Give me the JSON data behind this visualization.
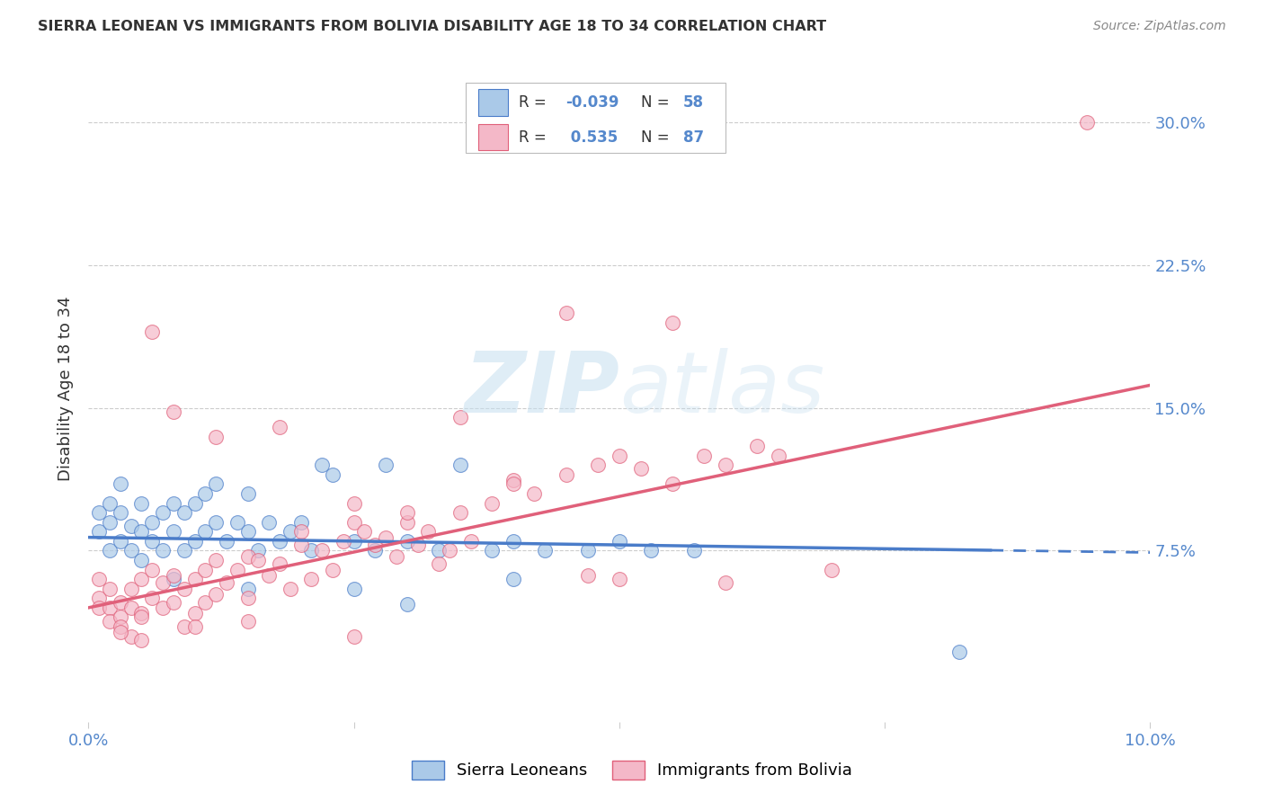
{
  "title": "SIERRA LEONEAN VS IMMIGRANTS FROM BOLIVIA DISABILITY AGE 18 TO 34 CORRELATION CHART",
  "source": "Source: ZipAtlas.com",
  "ylabel": "Disability Age 18 to 34",
  "xlim": [
    0.0,
    0.1
  ],
  "ylim": [
    -0.015,
    0.335
  ],
  "yticks": [
    0.075,
    0.15,
    0.225,
    0.3
  ],
  "ytick_labels": [
    "7.5%",
    "15.0%",
    "22.5%",
    "30.0%"
  ],
  "xticks": [
    0.0,
    0.025,
    0.05,
    0.075,
    0.1
  ],
  "xtick_labels": [
    "0.0%",
    "",
    "",
    "",
    "10.0%"
  ],
  "gridline_color": "#cccccc",
  "background_color": "#ffffff",
  "color_blue": "#aac9e8",
  "color_pink": "#f4b8c8",
  "color_blue_line": "#4a7cc9",
  "color_pink_line": "#e0607a",
  "color_axis_label": "#5588cc",
  "color_text": "#333333",
  "legend_labels": [
    "Sierra Leoneans",
    "Immigrants from Bolivia"
  ],
  "blue_R": "-0.039",
  "blue_N": "58",
  "pink_R": "0.535",
  "pink_N": "87",
  "blue_line_x": [
    0.0,
    0.1
  ],
  "blue_line_y": [
    0.082,
    0.074
  ],
  "pink_line_x": [
    0.0,
    0.1
  ],
  "pink_line_y": [
    0.045,
    0.162
  ],
  "blue_dots_x": [
    0.001,
    0.001,
    0.002,
    0.002,
    0.002,
    0.003,
    0.003,
    0.003,
    0.004,
    0.004,
    0.005,
    0.005,
    0.005,
    0.006,
    0.006,
    0.007,
    0.007,
    0.008,
    0.008,
    0.009,
    0.009,
    0.01,
    0.01,
    0.011,
    0.011,
    0.012,
    0.012,
    0.013,
    0.014,
    0.015,
    0.015,
    0.016,
    0.017,
    0.018,
    0.019,
    0.02,
    0.021,
    0.022,
    0.023,
    0.025,
    0.027,
    0.028,
    0.03,
    0.033,
    0.035,
    0.038,
    0.04,
    0.043,
    0.047,
    0.05,
    0.053,
    0.057,
    0.04,
    0.025,
    0.015,
    0.008,
    0.082,
    0.03
  ],
  "blue_dots_y": [
    0.085,
    0.095,
    0.075,
    0.09,
    0.1,
    0.08,
    0.095,
    0.11,
    0.075,
    0.088,
    0.07,
    0.085,
    0.1,
    0.08,
    0.09,
    0.075,
    0.095,
    0.085,
    0.1,
    0.075,
    0.095,
    0.08,
    0.1,
    0.085,
    0.105,
    0.09,
    0.11,
    0.08,
    0.09,
    0.085,
    0.105,
    0.075,
    0.09,
    0.08,
    0.085,
    0.09,
    0.075,
    0.12,
    0.115,
    0.08,
    0.075,
    0.12,
    0.08,
    0.075,
    0.12,
    0.075,
    0.08,
    0.075,
    0.075,
    0.08,
    0.075,
    0.075,
    0.06,
    0.055,
    0.055,
    0.06,
    0.022,
    0.047
  ],
  "pink_dots_x": [
    0.001,
    0.001,
    0.001,
    0.002,
    0.002,
    0.002,
    0.003,
    0.003,
    0.003,
    0.004,
    0.004,
    0.004,
    0.005,
    0.005,
    0.005,
    0.006,
    0.006,
    0.007,
    0.007,
    0.008,
    0.008,
    0.009,
    0.009,
    0.01,
    0.01,
    0.011,
    0.011,
    0.012,
    0.012,
    0.013,
    0.014,
    0.015,
    0.015,
    0.016,
    0.017,
    0.018,
    0.019,
    0.02,
    0.021,
    0.022,
    0.023,
    0.024,
    0.025,
    0.026,
    0.027,
    0.028,
    0.029,
    0.03,
    0.031,
    0.032,
    0.033,
    0.034,
    0.035,
    0.036,
    0.038,
    0.04,
    0.042,
    0.045,
    0.048,
    0.05,
    0.052,
    0.055,
    0.058,
    0.06,
    0.063,
    0.065,
    0.035,
    0.025,
    0.018,
    0.012,
    0.008,
    0.02,
    0.03,
    0.04,
    0.05,
    0.06,
    0.07,
    0.025,
    0.015,
    0.01,
    0.005,
    0.003,
    0.006,
    0.045,
    0.055,
    0.094,
    0.047
  ],
  "pink_dots_y": [
    0.06,
    0.05,
    0.045,
    0.055,
    0.045,
    0.038,
    0.048,
    0.04,
    0.035,
    0.055,
    0.045,
    0.03,
    0.06,
    0.042,
    0.028,
    0.065,
    0.05,
    0.058,
    0.045,
    0.062,
    0.048,
    0.055,
    0.035,
    0.06,
    0.042,
    0.065,
    0.048,
    0.07,
    0.052,
    0.058,
    0.065,
    0.072,
    0.05,
    0.07,
    0.062,
    0.068,
    0.055,
    0.078,
    0.06,
    0.075,
    0.065,
    0.08,
    0.09,
    0.085,
    0.078,
    0.082,
    0.072,
    0.09,
    0.078,
    0.085,
    0.068,
    0.075,
    0.095,
    0.08,
    0.1,
    0.112,
    0.105,
    0.115,
    0.12,
    0.125,
    0.118,
    0.11,
    0.125,
    0.12,
    0.13,
    0.125,
    0.145,
    0.1,
    0.14,
    0.135,
    0.148,
    0.085,
    0.095,
    0.11,
    0.06,
    0.058,
    0.065,
    0.03,
    0.038,
    0.035,
    0.04,
    0.032,
    0.19,
    0.2,
    0.195,
    0.3,
    0.062
  ]
}
